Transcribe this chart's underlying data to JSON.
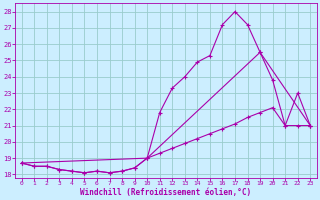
{
  "xlabel": "Windchill (Refroidissement éolien,°C)",
  "xlim": [
    -0.5,
    23.5
  ],
  "ylim": [
    17.8,
    28.5
  ],
  "yticks": [
    18,
    19,
    20,
    21,
    22,
    23,
    24,
    25,
    26,
    27,
    28
  ],
  "xticks": [
    0,
    1,
    2,
    3,
    4,
    5,
    6,
    7,
    8,
    9,
    10,
    11,
    12,
    13,
    14,
    15,
    16,
    17,
    18,
    19,
    20,
    21,
    22,
    23
  ],
  "bg_color": "#cceeff",
  "grid_color": "#99cccc",
  "line_color": "#aa00aa",
  "series1_x": [
    0,
    1,
    2,
    3,
    4,
    5,
    6,
    7,
    8,
    9,
    10,
    11,
    12,
    13,
    14,
    15,
    16,
    17,
    18,
    19,
    20,
    21,
    22,
    23
  ],
  "series1_y": [
    18.7,
    18.5,
    18.5,
    18.3,
    18.2,
    18.1,
    18.2,
    18.1,
    18.2,
    18.4,
    19.0,
    21.8,
    23.3,
    24.0,
    24.9,
    25.3,
    27.2,
    28.0,
    27.2,
    25.5,
    23.8,
    21.0,
    23.0,
    21.0
  ],
  "series2_x": [
    0,
    1,
    2,
    3,
    4,
    5,
    6,
    7,
    8,
    9,
    10,
    11,
    12,
    13,
    14,
    15,
    16,
    17,
    18,
    19,
    20,
    21,
    22,
    23
  ],
  "series2_y": [
    18.7,
    18.5,
    18.5,
    18.3,
    18.2,
    18.1,
    18.2,
    18.1,
    18.2,
    18.4,
    19.0,
    19.3,
    19.6,
    19.9,
    20.2,
    20.5,
    20.8,
    21.1,
    21.5,
    21.8,
    22.1,
    21.0,
    21.0,
    21.0
  ],
  "series3_x": [
    0,
    10,
    19,
    23
  ],
  "series3_y": [
    18.7,
    19.0,
    25.5,
    21.0
  ]
}
